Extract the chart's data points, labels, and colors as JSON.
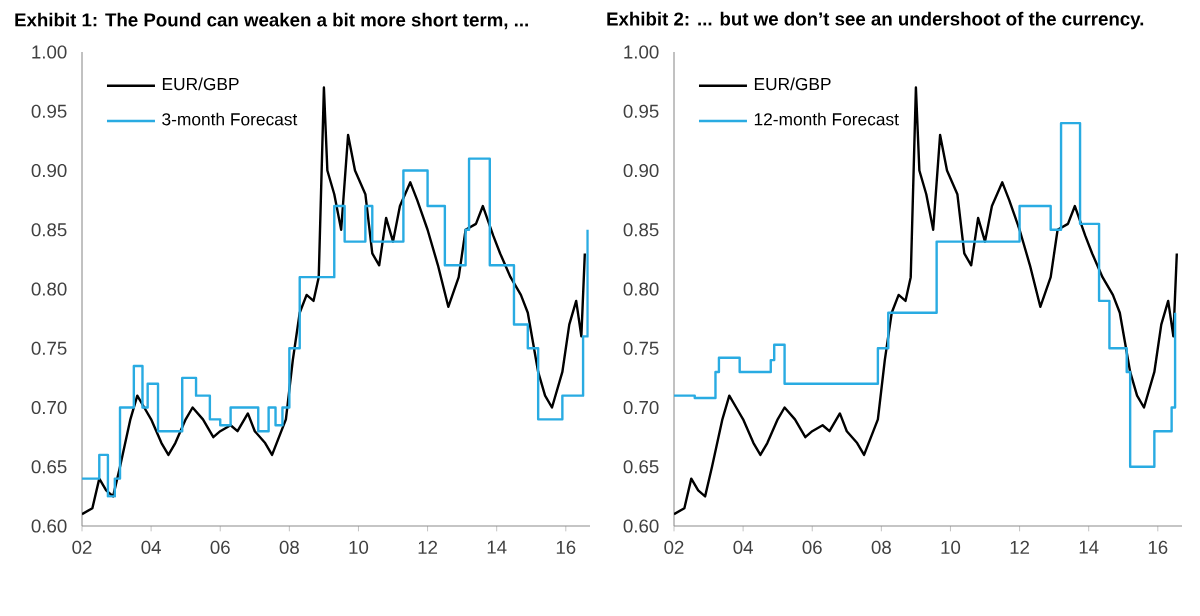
{
  "chart_data": [
    {
      "type": "line",
      "title": "Exhibit 1: The Pound can weaken a bit more short term, ...",
      "legend": "top left",
      "grid": false,
      "xlim": [
        2002,
        2016.7
      ],
      "ylim": [
        0.6,
        1.0
      ],
      "xticks": [
        {
          "value": 2002,
          "label": "02"
        },
        {
          "value": 2004,
          "label": "04"
        },
        {
          "value": 2006,
          "label": "06"
        },
        {
          "value": 2008,
          "label": "08"
        },
        {
          "value": 2010,
          "label": "10"
        },
        {
          "value": 2012,
          "label": "12"
        },
        {
          "value": 2014,
          "label": "14"
        },
        {
          "value": 2016,
          "label": "16"
        }
      ],
      "yticks": [
        {
          "value": 0.6,
          "label": "0.60"
        },
        {
          "value": 0.65,
          "label": "0.65"
        },
        {
          "value": 0.7,
          "label": "0.70"
        },
        {
          "value": 0.75,
          "label": "0.75"
        },
        {
          "value": 0.8,
          "label": "0.80"
        },
        {
          "value": 0.85,
          "label": "0.85"
        },
        {
          "value": 0.9,
          "label": "0.90"
        },
        {
          "value": 0.95,
          "label": "0.95"
        },
        {
          "value": 1.0,
          "label": "1.00"
        }
      ],
      "series": [
        {
          "name": "EUR/GBP",
          "type": "line",
          "color": "#000000",
          "x": [
            2002.0,
            2002.3,
            2002.5,
            2002.7,
            2002.9,
            2003.1,
            2003.4,
            2003.6,
            2003.8,
            2004.0,
            2004.3,
            2004.5,
            2004.7,
            2005.0,
            2005.2,
            2005.5,
            2005.8,
            2006.0,
            2006.3,
            2006.5,
            2006.8,
            2007.0,
            2007.3,
            2007.5,
            2007.7,
            2007.9,
            2008.1,
            2008.3,
            2008.5,
            2008.7,
            2008.85,
            2009.0,
            2009.1,
            2009.3,
            2009.5,
            2009.7,
            2009.9,
            2010.2,
            2010.4,
            2010.6,
            2010.8,
            2011.0,
            2011.2,
            2011.5,
            2011.7,
            2012.0,
            2012.3,
            2012.6,
            2012.9,
            2013.1,
            2013.4,
            2013.6,
            2013.9,
            2014.1,
            2014.4,
            2014.7,
            2014.9,
            2015.2,
            2015.4,
            2015.6,
            2015.9,
            2016.1,
            2016.3,
            2016.45,
            2016.55
          ],
          "values": [
            0.61,
            0.615,
            0.64,
            0.63,
            0.625,
            0.65,
            0.69,
            0.71,
            0.7,
            0.69,
            0.67,
            0.66,
            0.67,
            0.69,
            0.7,
            0.69,
            0.675,
            0.68,
            0.685,
            0.68,
            0.695,
            0.68,
            0.67,
            0.66,
            0.675,
            0.69,
            0.74,
            0.78,
            0.795,
            0.79,
            0.81,
            0.97,
            0.9,
            0.88,
            0.85,
            0.93,
            0.9,
            0.88,
            0.83,
            0.82,
            0.86,
            0.84,
            0.87,
            0.89,
            0.875,
            0.85,
            0.82,
            0.785,
            0.81,
            0.85,
            0.855,
            0.87,
            0.845,
            0.83,
            0.81,
            0.795,
            0.78,
            0.73,
            0.71,
            0.7,
            0.73,
            0.77,
            0.79,
            0.76,
            0.83
          ]
        },
        {
          "name": "3-month Forecast",
          "type": "step",
          "color": "#29abe2",
          "x": [
            2002.0,
            2002.5,
            2002.75,
            2002.95,
            2003.1,
            2003.5,
            2003.75,
            2003.9,
            2004.2,
            2004.9,
            2005.3,
            2005.7,
            2006.0,
            2006.3,
            2007.1,
            2007.4,
            2007.6,
            2007.8,
            2008.0,
            2008.3,
            2009.3,
            2009.6,
            2010.2,
            2010.4,
            2011.3,
            2012.0,
            2012.5,
            2013.1,
            2013.2,
            2013.8,
            2014.5,
            2014.9,
            2015.2,
            2015.9,
            2016.5,
            2016.63
          ],
          "values": [
            0.64,
            0.66,
            0.625,
            0.64,
            0.7,
            0.735,
            0.7,
            0.72,
            0.68,
            0.725,
            0.71,
            0.69,
            0.685,
            0.7,
            0.68,
            0.7,
            0.685,
            0.7,
            0.75,
            0.81,
            0.87,
            0.84,
            0.87,
            0.84,
            0.9,
            0.87,
            0.82,
            0.85,
            0.91,
            0.82,
            0.77,
            0.75,
            0.69,
            0.71,
            0.76,
            0.85
          ]
        }
      ]
    },
    {
      "type": "line",
      "title": "Exhibit 2: ... but we don’t see an undershoot of the currency.",
      "legend": "top left",
      "grid": false,
      "xlim": [
        2002,
        2016.7
      ],
      "ylim": [
        0.6,
        1.0
      ],
      "xticks": [
        {
          "value": 2002,
          "label": "02"
        },
        {
          "value": 2004,
          "label": "04"
        },
        {
          "value": 2006,
          "label": "06"
        },
        {
          "value": 2008,
          "label": "08"
        },
        {
          "value": 2010,
          "label": "10"
        },
        {
          "value": 2012,
          "label": "12"
        },
        {
          "value": 2014,
          "label": "14"
        },
        {
          "value": 2016,
          "label": "16"
        }
      ],
      "yticks": [
        {
          "value": 0.6,
          "label": "0.60"
        },
        {
          "value": 0.65,
          "label": "0.65"
        },
        {
          "value": 0.7,
          "label": "0.70"
        },
        {
          "value": 0.75,
          "label": "0.75"
        },
        {
          "value": 0.8,
          "label": "0.80"
        },
        {
          "value": 0.85,
          "label": "0.85"
        },
        {
          "value": 0.9,
          "label": "0.90"
        },
        {
          "value": 0.95,
          "label": "0.95"
        },
        {
          "value": 1.0,
          "label": "1.00"
        }
      ],
      "series": [
        {
          "name": "EUR/GBP",
          "type": "line",
          "color": "#000000",
          "x": [
            2002.0,
            2002.3,
            2002.5,
            2002.7,
            2002.9,
            2003.1,
            2003.4,
            2003.6,
            2003.8,
            2004.0,
            2004.3,
            2004.5,
            2004.7,
            2005.0,
            2005.2,
            2005.5,
            2005.8,
            2006.0,
            2006.3,
            2006.5,
            2006.8,
            2007.0,
            2007.3,
            2007.5,
            2007.7,
            2007.9,
            2008.1,
            2008.3,
            2008.5,
            2008.7,
            2008.85,
            2009.0,
            2009.1,
            2009.3,
            2009.5,
            2009.7,
            2009.9,
            2010.2,
            2010.4,
            2010.6,
            2010.8,
            2011.0,
            2011.2,
            2011.5,
            2011.7,
            2012.0,
            2012.3,
            2012.6,
            2012.9,
            2013.1,
            2013.4,
            2013.6,
            2013.9,
            2014.1,
            2014.4,
            2014.7,
            2014.9,
            2015.2,
            2015.4,
            2015.6,
            2015.9,
            2016.1,
            2016.3,
            2016.45,
            2016.55
          ],
          "values": [
            0.61,
            0.615,
            0.64,
            0.63,
            0.625,
            0.65,
            0.69,
            0.71,
            0.7,
            0.69,
            0.67,
            0.66,
            0.67,
            0.69,
            0.7,
            0.69,
            0.675,
            0.68,
            0.685,
            0.68,
            0.695,
            0.68,
            0.67,
            0.66,
            0.675,
            0.69,
            0.74,
            0.78,
            0.795,
            0.79,
            0.81,
            0.97,
            0.9,
            0.88,
            0.85,
            0.93,
            0.9,
            0.88,
            0.83,
            0.82,
            0.86,
            0.84,
            0.87,
            0.89,
            0.875,
            0.85,
            0.82,
            0.785,
            0.81,
            0.85,
            0.855,
            0.87,
            0.845,
            0.83,
            0.81,
            0.795,
            0.78,
            0.73,
            0.71,
            0.7,
            0.73,
            0.77,
            0.79,
            0.76,
            0.83
          ]
        },
        {
          "name": "12-month Forecast",
          "type": "step",
          "color": "#29abe2",
          "x": [
            2002.0,
            2002.6,
            2003.2,
            2003.3,
            2003.9,
            2004.8,
            2004.9,
            2005.2,
            2006.8,
            2007.9,
            2008.2,
            2009.6,
            2012.0,
            2012.9,
            2013.2,
            2013.75,
            2014.3,
            2014.6,
            2015.1,
            2015.2,
            2015.9,
            2016.4,
            2016.5
          ],
          "values": [
            0.71,
            0.708,
            0.73,
            0.742,
            0.73,
            0.74,
            0.753,
            0.72,
            0.72,
            0.75,
            0.78,
            0.84,
            0.87,
            0.85,
            0.94,
            0.855,
            0.79,
            0.75,
            0.73,
            0.65,
            0.68,
            0.7,
            0.78
          ]
        }
      ]
    }
  ]
}
